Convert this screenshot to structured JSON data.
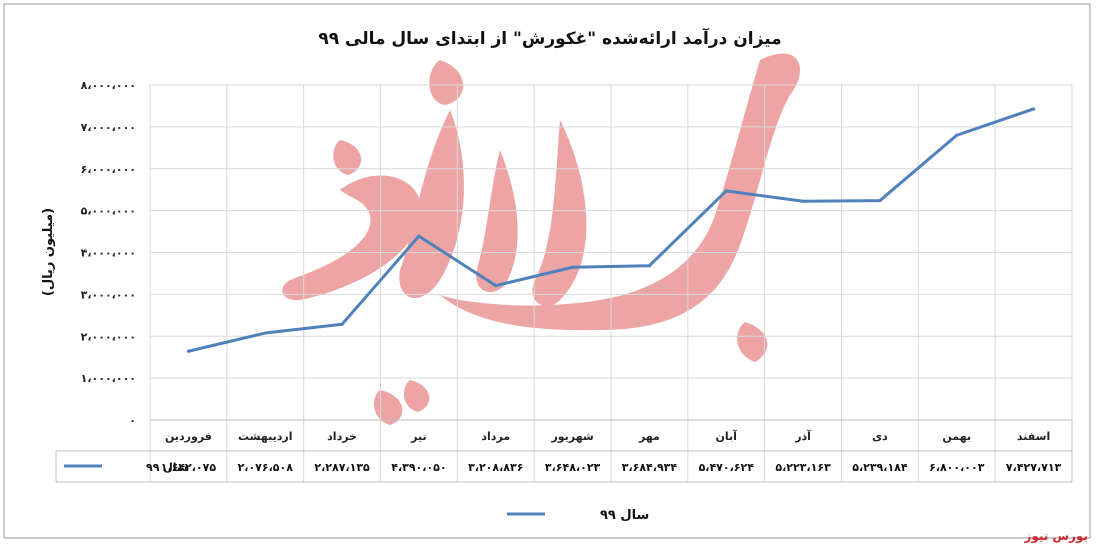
{
  "chart_data": {
    "type": "line",
    "title": "میزان درآمد ارائه‌شده \"غکورش\" از ابتدای سال مالی ۹۹",
    "ylabel": "(میلیون ریال)",
    "ylim": [
      0,
      8000000
    ],
    "yticks": [
      "۰",
      "۱،۰۰۰،۰۰۰",
      "۲،۰۰۰،۰۰۰",
      "۳،۰۰۰،۰۰۰",
      "۴،۰۰۰،۰۰۰",
      "۵،۰۰۰،۰۰۰",
      "۶،۰۰۰،۰۰۰",
      "۷،۰۰۰،۰۰۰",
      "۸،۰۰۰،۰۰۰"
    ],
    "categories": [
      "فروردین",
      "اردیبهشت",
      "خرداد",
      "تیر",
      "مرداد",
      "شهریور",
      "مهر",
      "آبان",
      "آذر",
      "دی",
      "بهمن",
      "اسفند"
    ],
    "series": [
      {
        "name": "سال ۹۹",
        "color": "#4f81bd",
        "values": [
          1642075,
          2076508,
          2287135,
          4390050,
          3208836,
          3648023,
          3684934,
          5470624,
          5223163,
          5239184,
          6800003,
          7427713
        ],
        "labels": [
          "۱،۶۴۲،۰۷۵",
          "۲،۰۷۶،۵۰۸",
          "۲،۲۸۷،۱۳۵",
          "۴،۳۹۰،۰۵۰",
          "۳،۲۰۸،۸۳۶",
          "۳،۶۴۸،۰۲۳",
          "۳،۶۸۴،۹۳۴",
          "۵،۴۷۰،۶۲۴",
          "۵،۲۲۳،۱۶۳",
          "۵،۲۳۹،۱۸۴",
          "۶،۸۰۰،۰۰۳",
          "۷،۴۲۷،۷۱۳"
        ]
      }
    ],
    "grid": true,
    "legend": "bottom",
    "data_table": true
  },
  "watermark_text": "بورس نیوز",
  "brand_text": "بورس نیوز"
}
